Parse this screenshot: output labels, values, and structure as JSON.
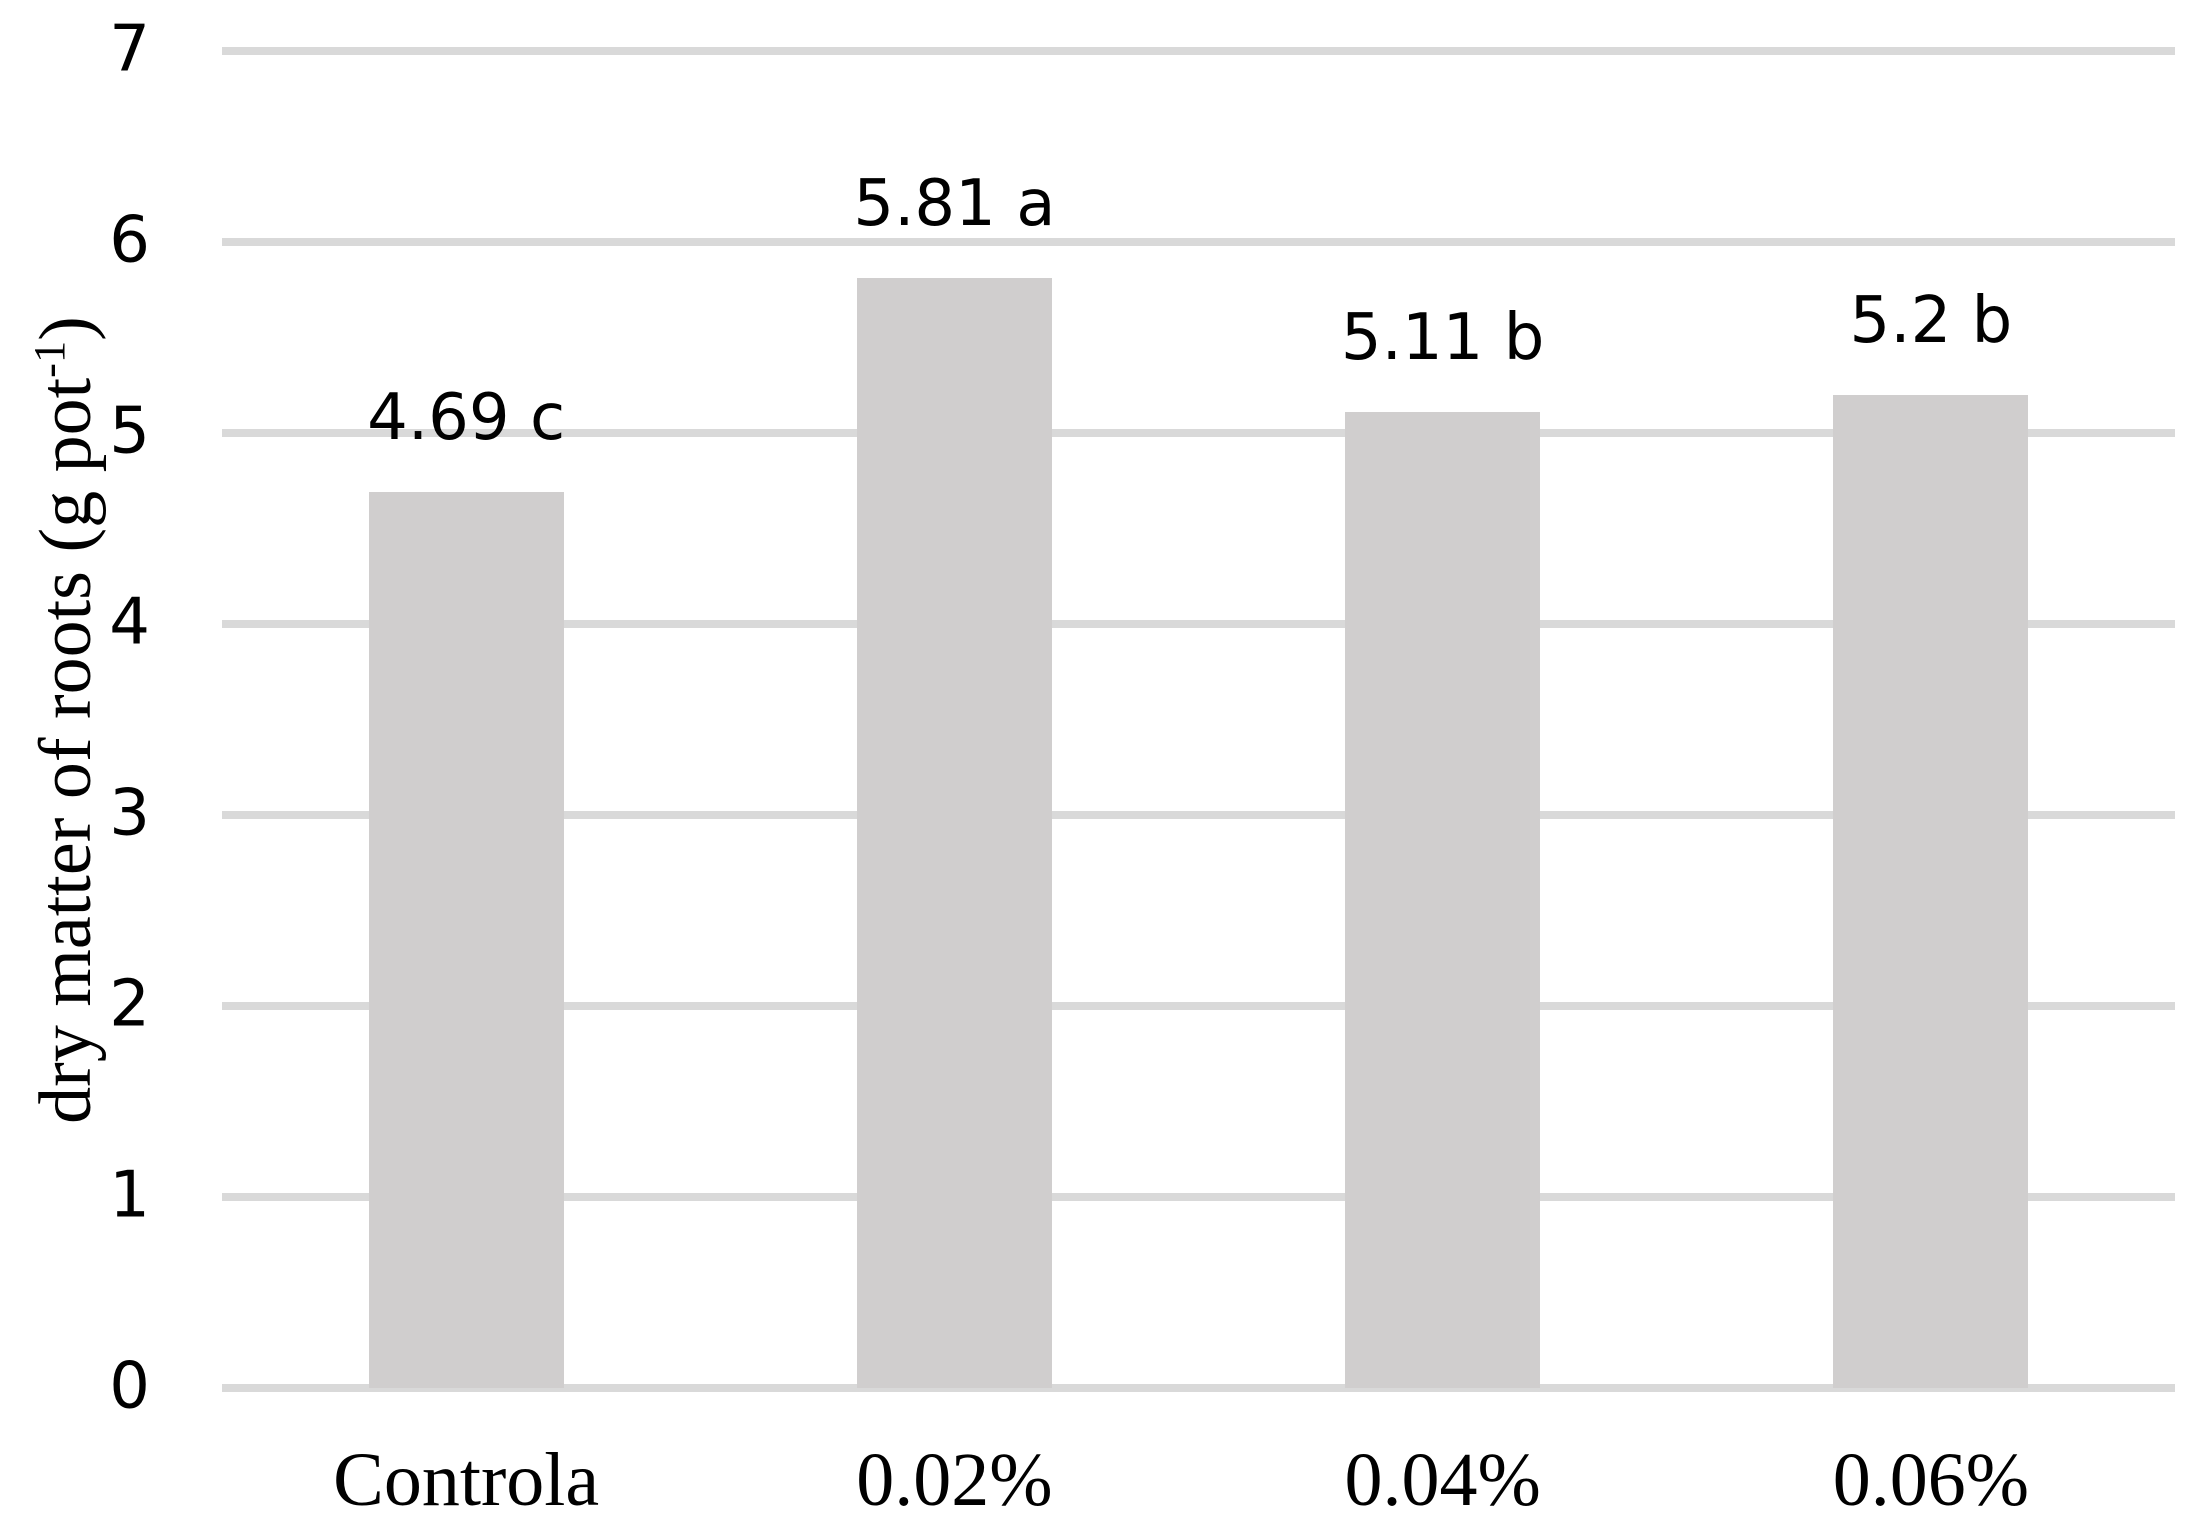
{
  "chart_data": {
    "type": "bar",
    "title": "",
    "categories": [
      "Controla",
      "0.02%",
      "0.04%",
      "0.06%"
    ],
    "values": [
      4.69,
      5.81,
      5.11,
      5.2
    ],
    "bar_labels": [
      "4.69 c",
      "5.81 a",
      "5.11 b",
      "5.2 b"
    ],
    "significance_letters": [
      "c",
      "a",
      "b",
      "b"
    ],
    "series_name": "dry matter of roots",
    "xlabel": "",
    "ylabel_prefix": "dry matter of roots (g pot",
    "ylabel_superscript": "-1",
    "ylabel_suffix": ")",
    "ylabel_full": "dry matter of roots (g pot-1)",
    "ylim": [
      0,
      7
    ],
    "yticks": [
      0,
      1,
      2,
      3,
      4,
      5,
      6,
      7
    ],
    "grid": "horizontal",
    "legend": "none",
    "colors": {
      "bar_fill": "#d0cece",
      "gridline": "#d9d9d9",
      "text": "#000000",
      "background": "#ffffff"
    }
  }
}
